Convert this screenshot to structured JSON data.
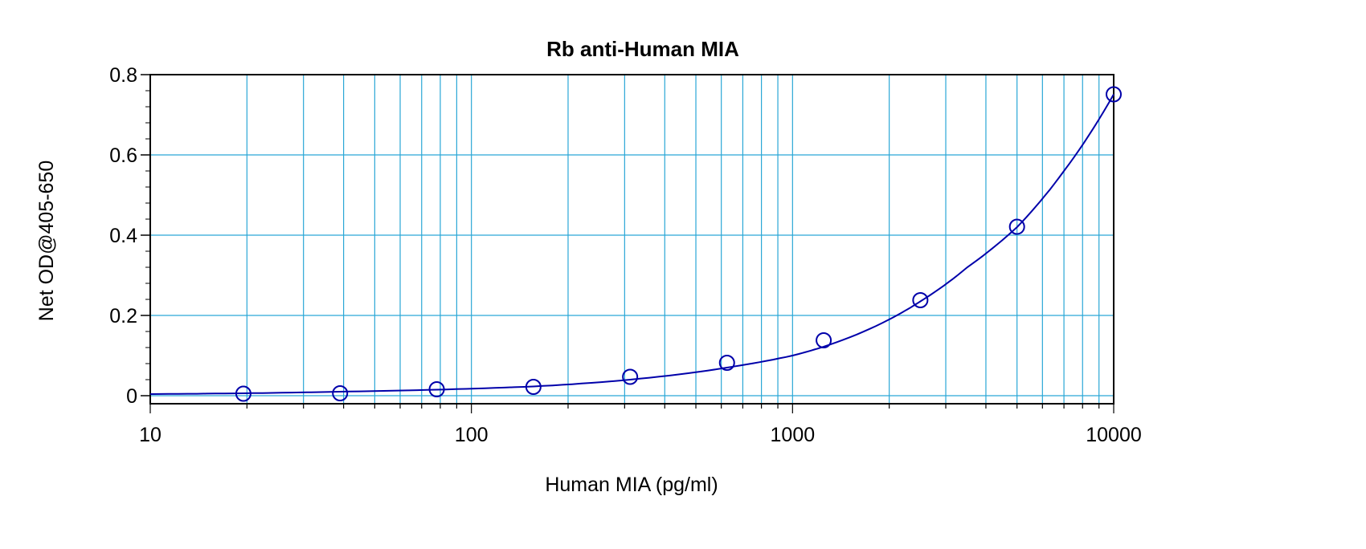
{
  "chart_data": {
    "type": "scatter",
    "title": "Rb anti-Human MIA",
    "xlabel": "Human MIA (pg/ml)",
    "ylabel": "Net OD@405-650",
    "xscale": "log",
    "xlim": [
      10,
      10000
    ],
    "ylim": [
      -0.02,
      0.8
    ],
    "xticks": [
      10,
      100,
      1000,
      10000
    ],
    "xtick_labels": [
      "10",
      "100",
      "1000",
      "10000"
    ],
    "yticks": [
      0,
      0.2,
      0.4,
      0.6,
      0.8
    ],
    "ytick_labels": [
      "0",
      "0.2",
      "0.4",
      "0.6",
      "0.8"
    ],
    "grid": true,
    "colors": {
      "series": "#0000aa",
      "grid": "#2aa7d6",
      "frame": "#000000"
    },
    "series": [
      {
        "marker": "open-circle",
        "x": [
          19.5,
          39,
          78,
          156,
          312,
          625,
          1250,
          2500,
          5000,
          10000
        ],
        "y": [
          0.005,
          0.006,
          0.016,
          0.022,
          0.047,
          0.082,
          0.138,
          0.238,
          0.421,
          0.751
        ]
      }
    ],
    "fit_curve": {
      "x": [
        10,
        19.5,
        39,
        78,
        156,
        312,
        625,
        1000,
        1250,
        2000,
        2500,
        3500,
        5000,
        7000,
        10000
      ],
      "y": [
        0.004,
        0.006,
        0.01,
        0.015,
        0.023,
        0.04,
        0.07,
        0.1,
        0.122,
        0.19,
        0.235,
        0.32,
        0.42,
        0.56,
        0.751
      ]
    }
  }
}
